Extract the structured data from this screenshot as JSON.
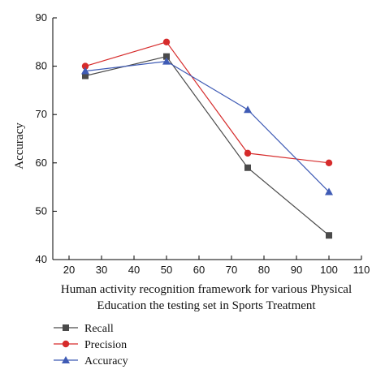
{
  "chart_data": {
    "type": "line",
    "title": "",
    "xlabel_lines": [
      "Human activity recognition framework for various Physical",
      "Education the testing set in Sports Treatment"
    ],
    "ylabel": "Accuracy",
    "xlim": [
      15,
      110
    ],
    "ylim": [
      40,
      90
    ],
    "xticks": [
      20,
      30,
      40,
      50,
      60,
      70,
      80,
      90,
      100,
      110
    ],
    "yticks": [
      40,
      50,
      60,
      70,
      80,
      90
    ],
    "x": [
      25,
      50,
      75,
      100
    ],
    "series": [
      {
        "name": "Recall",
        "values": [
          78,
          82,
          59,
          45
        ],
        "color": "#4a4a4a",
        "marker": "square"
      },
      {
        "name": "Precision",
        "values": [
          80,
          85,
          62,
          60
        ],
        "color": "#d62b2b",
        "marker": "circle"
      },
      {
        "name": "Accuracy",
        "values": [
          79,
          81,
          71,
          54
        ],
        "color": "#3f5bb5",
        "marker": "triangle"
      }
    ],
    "legend_position": "bottom-left",
    "grid": false
  }
}
